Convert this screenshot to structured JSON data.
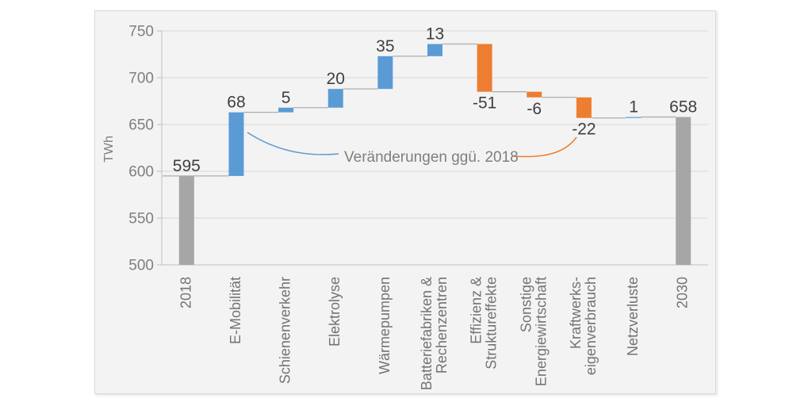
{
  "page": {
    "background": "#ffffff"
  },
  "panel": {
    "background": "#f3f3f3",
    "border_color": "#d9d9d9"
  },
  "chart_data": {
    "type": "waterfall",
    "title": "",
    "xlabel": "",
    "ylabel": "TWh",
    "ylim": [
      500,
      750
    ],
    "ytick_step": 50,
    "yticks": [
      "500",
      "550",
      "600",
      "650",
      "700",
      "750"
    ],
    "grid": true,
    "legend_position": "none",
    "entries": [
      {
        "name": "2018",
        "lines": [
          "2018"
        ],
        "value": 595,
        "bar": "total",
        "display": "595"
      },
      {
        "name": "e-mobilitaet",
        "lines": [
          "E-Mobilität"
        ],
        "value": 68,
        "bar": "increase",
        "display": "68"
      },
      {
        "name": "schienenverkehr",
        "lines": [
          "Schienenverkehr"
        ],
        "value": 5,
        "bar": "increase",
        "display": "5"
      },
      {
        "name": "elektrolyse",
        "lines": [
          "Elektrolyse"
        ],
        "value": 20,
        "bar": "increase",
        "display": "20"
      },
      {
        "name": "waermepumpen",
        "lines": [
          "Wärmepumpen"
        ],
        "value": 35,
        "bar": "increase",
        "display": "35"
      },
      {
        "name": "batteriefabriken-rechenzentren",
        "lines": [
          "Batteriefabriken &",
          "Rechenzentren"
        ],
        "value": 13,
        "bar": "increase",
        "display": "13"
      },
      {
        "name": "effizienz-struktureffekte",
        "lines": [
          "Effizienz &",
          "Struktureffekte"
        ],
        "value": -51,
        "bar": "decrease",
        "display": "-51"
      },
      {
        "name": "sonstige-energiewirtschaft",
        "lines": [
          "Sonstige",
          "Energiewirtschaft"
        ],
        "value": -6,
        "bar": "decrease",
        "display": "-6"
      },
      {
        "name": "kraftwerks-eigenverbrauch",
        "lines": [
          "Kraftwerks-",
          "eigenverbrauch"
        ],
        "value": -22,
        "bar": "decrease",
        "display": "-22"
      },
      {
        "name": "netzverluste",
        "lines": [
          "Netzverluste"
        ],
        "value": 1,
        "bar": "increase",
        "display": "1"
      },
      {
        "name": "2030",
        "lines": [
          "2030"
        ],
        "value": 658,
        "bar": "total",
        "display": "658"
      }
    ],
    "cumulative_levels": [
      595,
      663,
      668,
      688,
      723,
      736,
      685,
      679,
      657,
      658,
      658
    ],
    "colors": {
      "increase": "#5b9bd5",
      "decrease": "#ed7d31",
      "total": "#a6a6a6",
      "connector": "#aeaeae",
      "gridline": "#d9d9d9",
      "axis": "#bfbfbf",
      "data_label": "#3f3f3f",
      "tick_label": "#7f7f7f",
      "category_label": "#737373"
    },
    "annotation": {
      "text": "Veränderungen ggü. 2018",
      "color": "#7f7f7f",
      "leader_increase_color": "#5b9bd5",
      "leader_decrease_color": "#ed7d31"
    }
  }
}
